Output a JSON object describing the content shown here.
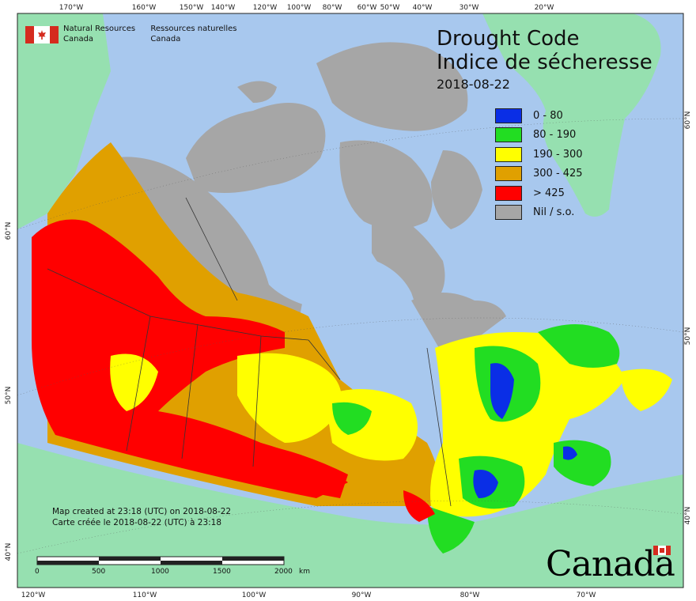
{
  "agency": {
    "english": [
      "Natural Resources",
      "Canada"
    ],
    "french": [
      "Ressources naturelles",
      "Canada"
    ]
  },
  "title": {
    "en": "Drought Code",
    "fr": "Indice de sécheresse",
    "date": "2018-08-22"
  },
  "legend": [
    {
      "label": "0 - 80",
      "color": "#0a2ee6"
    },
    {
      "label": "80 - 190",
      "color": "#22dd22"
    },
    {
      "label": "190 - 300",
      "color": "#ffff00"
    },
    {
      "label": "300 - 425",
      "color": "#e0a000"
    },
    {
      "label": "> 425",
      "color": "#ff0000"
    },
    {
      "label": "Nil / s.o.",
      "color": "#a6a6a6"
    }
  ],
  "created": {
    "en": "Map created at 23:18 (UTC) on 2018-08-22",
    "fr": "Carte créée le 2018-08-22 (UTC) à 23:18"
  },
  "scale_bar": {
    "labels": [
      "0",
      "500",
      "1000",
      "1500",
      "2000"
    ],
    "unit": "km"
  },
  "ticks": {
    "top": [
      "170°W",
      "160°W",
      "150°W",
      "140°W",
      "120°W",
      "100°W",
      "80°W",
      "60°W",
      "50°W",
      "40°W",
      "30°W",
      "20°W"
    ],
    "bottom": [
      "120°W",
      "110°W",
      "100°W",
      "90°W",
      "80°W",
      "70°W"
    ],
    "left": [
      "60°N",
      "50°N",
      "40°N"
    ],
    "right": [
      "60°N",
      "50°N",
      "40°N"
    ]
  },
  "wordmark": "Canada",
  "colors": {
    "ocean": "#a8c8ee",
    "land": "#96e0b0",
    "nil": "#a6a6a6",
    "flag_red": "#d52b1e"
  }
}
